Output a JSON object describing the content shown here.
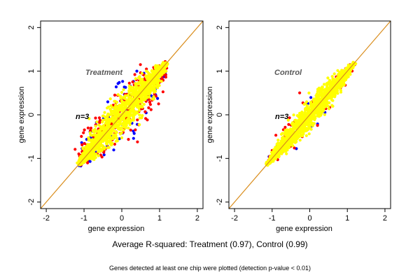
{
  "figure": {
    "caption_main": "Average R-squared: Treatment (0.97), Control (0.99)",
    "caption_note": "Genes detected at least one chip were plotted (detection p-value < 0.01)"
  },
  "colors": {
    "series_blue": "#0000ff",
    "series_red": "#ff0000",
    "series_yellow": "#ffff00",
    "diagonal_line": "#d98c1a"
  },
  "chart_data": [
    {
      "type": "scatter",
      "title": "Treatment",
      "annotation": "n=3",
      "xlabel": "gene expression",
      "ylabel": "gene expression",
      "xlim": [
        -2.15,
        2.15
      ],
      "ylim": [
        -2.15,
        2.15
      ],
      "xticks": [
        "-2",
        "-1",
        "0",
        "1",
        "2"
      ],
      "yticks": [
        "-2",
        "-1",
        "0",
        "1",
        "2"
      ],
      "reference_line": {
        "slope": 1,
        "intercept": 0
      },
      "spread": 0.17,
      "range": [
        -1.15,
        1.2
      ],
      "series": [
        {
          "color": "blue",
          "count": 120
        },
        {
          "color": "red",
          "count": 320
        },
        {
          "color": "yellow",
          "count": 1500
        }
      ]
    },
    {
      "type": "scatter",
      "title": "Control",
      "annotation": "n=3",
      "xlabel": "gene expression",
      "ylabel": "gene expression",
      "xlim": [
        -2.15,
        2.15
      ],
      "ylim": [
        -2.15,
        2.15
      ],
      "xticks": [
        "-2",
        "-1",
        "0",
        "1",
        "2"
      ],
      "yticks": [
        "-2",
        "-1",
        "0",
        "1",
        "2"
      ],
      "reference_line": {
        "slope": 1,
        "intercept": 0
      },
      "spread": 0.11,
      "range": [
        -1.15,
        1.2
      ],
      "series": [
        {
          "color": "blue",
          "count": 30
        },
        {
          "color": "red",
          "count": 80
        },
        {
          "color": "yellow",
          "count": 1500
        }
      ]
    }
  ]
}
